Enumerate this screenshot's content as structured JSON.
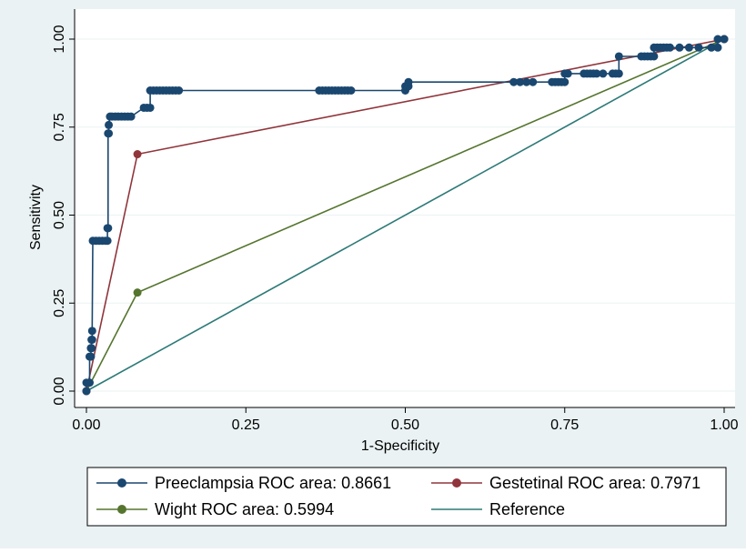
{
  "chart_data": {
    "type": "line",
    "title": "",
    "xlabel": "1-Specificity",
    "ylabel": "Sensitivity",
    "xlim": [
      0,
      1
    ],
    "ylim": [
      0,
      1
    ],
    "x_ticks": [
      "0.00",
      "0.25",
      "0.50",
      "0.75",
      "1.00"
    ],
    "y_ticks": [
      "0.00",
      "0.25",
      "0.50",
      "0.75",
      "1.00"
    ],
    "grid": "horizontal",
    "legend_position": "bottom",
    "series": [
      {
        "name": "Preeclampsia ROC area: 0.8661",
        "color": "#1a476f",
        "markers": true,
        "x": [
          0,
          0,
          0.005,
          0.005,
          0.007,
          0.007,
          0.008,
          0.008,
          0.009,
          0.009,
          0.01,
          0.015,
          0.02,
          0.025,
          0.03,
          0.033,
          0.033,
          0.034,
          0.034,
          0.035,
          0.035,
          0.037,
          0.04,
          0.045,
          0.05,
          0.055,
          0.06,
          0.065,
          0.07,
          0.09,
          0.095,
          0.1,
          0.1,
          0.105,
          0.11,
          0.115,
          0.12,
          0.125,
          0.13,
          0.135,
          0.14,
          0.145,
          0.365,
          0.37,
          0.375,
          0.38,
          0.385,
          0.39,
          0.395,
          0.4,
          0.405,
          0.41,
          0.415,
          0.5,
          0.5,
          0.503,
          0.505,
          0.505,
          0.67,
          0.68,
          0.69,
          0.7,
          0.73,
          0.735,
          0.74,
          0.745,
          0.75,
          0.75,
          0.755,
          0.78,
          0.785,
          0.79,
          0.795,
          0.8,
          0.81,
          0.825,
          0.83,
          0.835,
          0.835,
          0.87,
          0.875,
          0.88,
          0.885,
          0.89,
          0.89,
          0.895,
          0.9,
          0.905,
          0.91,
          0.915,
          0.93,
          0.945,
          0.96,
          0.98,
          0.99,
          0.99,
          1.0
        ],
        "y": [
          0,
          0.024,
          0.024,
          0.098,
          0.098,
          0.122,
          0.122,
          0.146,
          0.146,
          0.171,
          0.427,
          0.427,
          0.427,
          0.427,
          0.427,
          0.427,
          0.463,
          0.463,
          0.732,
          0.732,
          0.756,
          0.78,
          0.78,
          0.78,
          0.78,
          0.78,
          0.78,
          0.78,
          0.78,
          0.805,
          0.805,
          0.805,
          0.854,
          0.854,
          0.854,
          0.854,
          0.854,
          0.854,
          0.854,
          0.854,
          0.854,
          0.854,
          0.854,
          0.854,
          0.854,
          0.854,
          0.854,
          0.854,
          0.854,
          0.854,
          0.854,
          0.854,
          0.854,
          0.854,
          0.866,
          0.866,
          0.866,
          0.878,
          0.878,
          0.878,
          0.878,
          0.878,
          0.878,
          0.878,
          0.878,
          0.878,
          0.878,
          0.902,
          0.902,
          0.902,
          0.902,
          0.902,
          0.902,
          0.902,
          0.902,
          0.902,
          0.902,
          0.902,
          0.951,
          0.951,
          0.951,
          0.951,
          0.951,
          0.951,
          0.976,
          0.976,
          0.976,
          0.976,
          0.976,
          0.976,
          0.976,
          0.976,
          0.976,
          0.976,
          0.976,
          1.0,
          1.0
        ]
      },
      {
        "name": "Gestetinal ROC area: 0.7971",
        "color": "#90353b",
        "markers": true,
        "x": [
          0,
          0.08,
          1.0
        ],
        "y": [
          0,
          0.673,
          1.0
        ]
      },
      {
        "name": "Wight ROC area: 0.5994",
        "color": "#55752f",
        "markers": true,
        "x": [
          0,
          0.08,
          1.0
        ],
        "y": [
          0,
          0.28,
          1.0
        ]
      },
      {
        "name": "Reference",
        "color": "#2d7a77",
        "markers": false,
        "x": [
          0,
          1.0
        ],
        "y": [
          0,
          1.0
        ]
      }
    ]
  }
}
